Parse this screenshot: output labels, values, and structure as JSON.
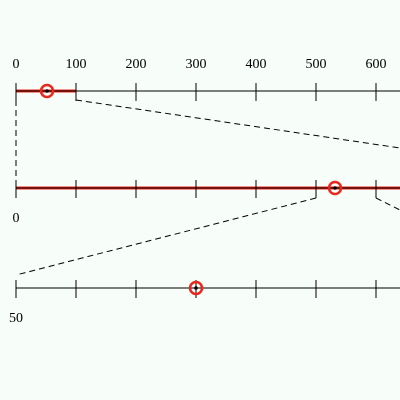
{
  "axes": [
    {
      "labels": [
        "0",
        "100",
        "200",
        "300",
        "400",
        "500",
        "600"
      ]
    },
    {
      "labels": [
        "0"
      ]
    },
    {
      "labels": [
        "50"
      ]
    }
  ]
}
